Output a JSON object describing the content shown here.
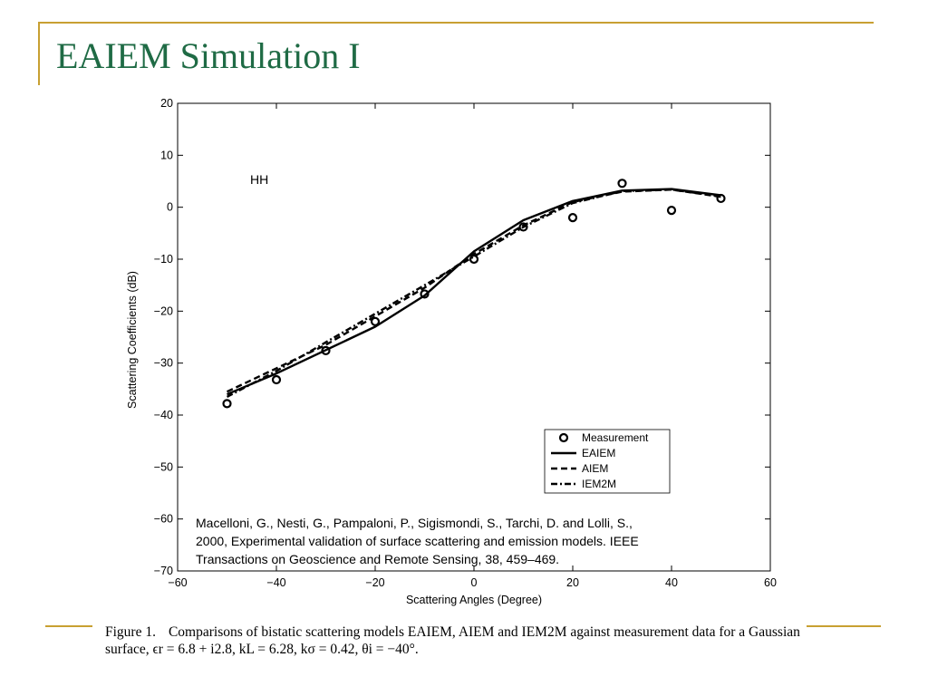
{
  "slide": {
    "title": "EAIEM Simulation I"
  },
  "caption": {
    "figure_label": "Figure 1.",
    "text": "Comparisons of bistatic scattering models EAIEM, AIEM and IEM2M against measurement data for a Gaussian surface, ϵr = 6.8 + i2.8, kL = 6.28, kσ = 0.42, θi = −40°."
  },
  "colors": {
    "accent": "#c8a032",
    "title": "#1f6b45"
  },
  "chart_data": {
    "type": "line",
    "title": "",
    "xlabel": "Scattering Angles (Degree)",
    "ylabel": "Scattering Coefficients (dB)",
    "xlim": [
      -60,
      60
    ],
    "ylim": [
      -70,
      20
    ],
    "xticks": [
      "−60",
      "−40",
      "−20",
      "0",
      "20",
      "40",
      "60"
    ],
    "yticks": [
      "20",
      "10",
      "0",
      "−10",
      "−20",
      "−30",
      "−40",
      "−50",
      "−60",
      "−70"
    ],
    "annotation": "HH",
    "legend_position": "lower-right",
    "citation": [
      "Macelloni, G., Nesti, G., Pampaloni, P., Sigismondi, S., Tarchi, D. and Lolli, S.,",
      "2000, Experimental validation of surface scattering and emission models. IEEE",
      "Transactions on Geoscience and Remote Sensing, 38, 459–469."
    ],
    "series": [
      {
        "name": "Measurement",
        "style": "circle",
        "x": [
          -50,
          -40,
          -30,
          -20,
          -10,
          0,
          10,
          20,
          30,
          40,
          50
        ],
        "y": [
          -37.8,
          -33.2,
          -27.6,
          -22.0,
          -16.7,
          -10.0,
          -3.8,
          -2.0,
          4.6,
          -0.6,
          1.7
        ]
      },
      {
        "name": "EAIEM",
        "style": "solid",
        "x": [
          -50,
          -40,
          -30,
          -20,
          -10,
          0,
          10,
          20,
          30,
          40,
          50
        ],
        "y": [
          -36.0,
          -32.0,
          -27.5,
          -23.0,
          -17.0,
          -8.5,
          -2.5,
          1.2,
          3.2,
          3.5,
          2.3
        ]
      },
      {
        "name": "AIEM",
        "style": "dashed",
        "x": [
          -50,
          -40,
          -30,
          -20,
          -10,
          0,
          10,
          20,
          30,
          40,
          50
        ],
        "y": [
          -35.5,
          -31.0,
          -26.5,
          -21.0,
          -15.5,
          -9.0,
          -3.5,
          1.0,
          3.0,
          3.4,
          2.0
        ]
      },
      {
        "name": "IEM2M",
        "style": "dashdot",
        "x": [
          -50,
          -40,
          -30,
          -20,
          -10,
          0,
          10,
          20,
          30,
          40,
          50
        ],
        "y": [
          -36.5,
          -31.5,
          -26.0,
          -20.5,
          -15.0,
          -9.5,
          -3.8,
          0.8,
          3.1,
          3.4,
          2.1
        ]
      }
    ]
  }
}
